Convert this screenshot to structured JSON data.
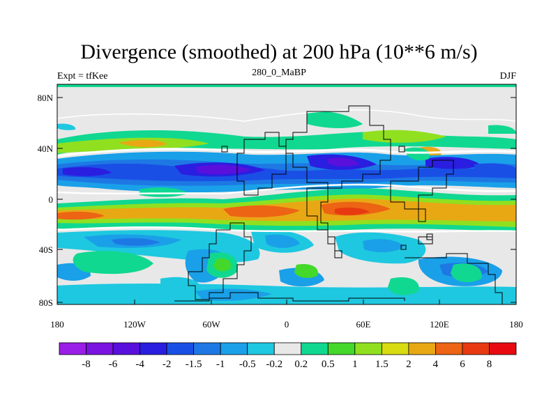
{
  "title": "Divergence (smoothed) at 200 hPa (10**6 m/s)",
  "subtitle_left": "Expt = tfKee",
  "subtitle_center": "280_0_MaBP",
  "subtitle_right": "DJF",
  "y_axis_labels": [
    "80N",
    "40N",
    "0",
    "40S",
    "80S"
  ],
  "x_axis_labels": [
    "180",
    "120W",
    "60W",
    "0",
    "60E",
    "120E",
    "180"
  ],
  "colorbar": {
    "labels": [
      "-8",
      "-6",
      "-4",
      "-2",
      "-1.5",
      "-1",
      "-0.5",
      "-0.2",
      "0.2",
      "0.5",
      "1",
      "1.5",
      "2",
      "4",
      "6",
      "8"
    ],
    "colors": [
      "#9a1ee6",
      "#7a14e0",
      "#5a10dc",
      "#2a1ee0",
      "#1a4fe6",
      "#1e78e4",
      "#1aa0e8",
      "#1ec8e0",
      "#e8e8e8",
      "#10d890",
      "#44d82a",
      "#90e020",
      "#d8dc10",
      "#e8a814",
      "#ec6414",
      "#e83a10",
      "#e80a10"
    ]
  },
  "colors": {
    "land_fill": "#e8e8e8",
    "coastline": "#000000",
    "zero_contour": "#ffffff"
  }
}
